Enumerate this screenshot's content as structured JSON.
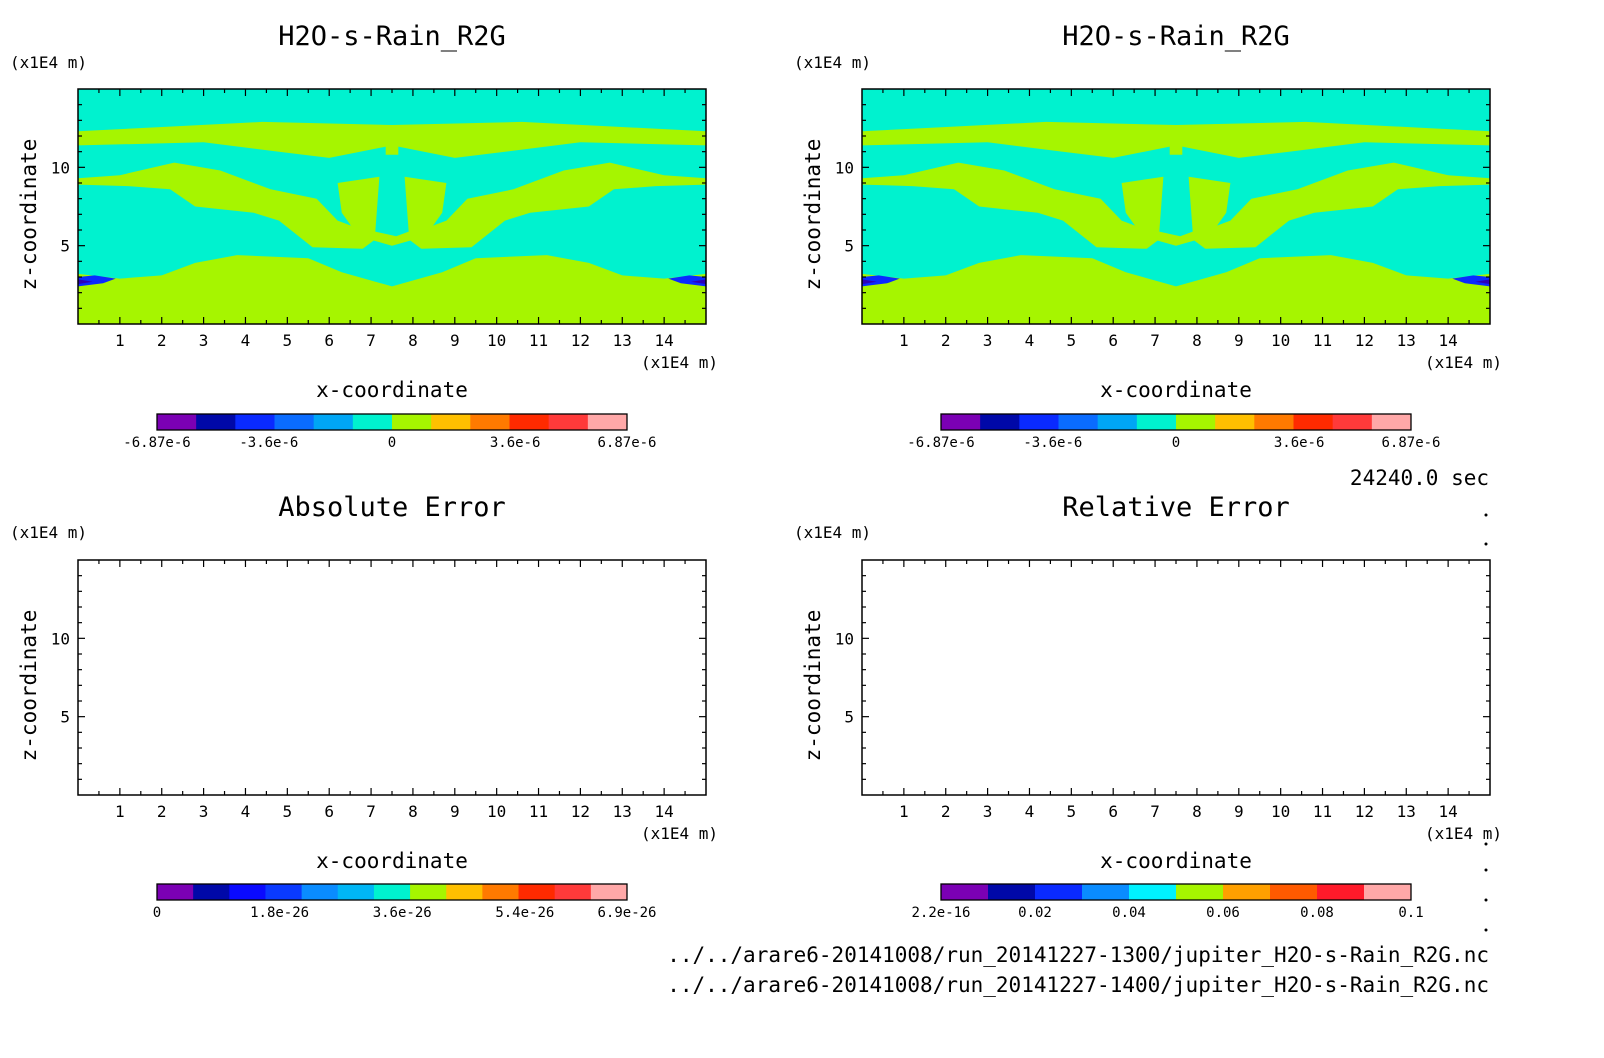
{
  "figure": {
    "time_label": "24240.0 sec",
    "files": [
      "../../arare6-20141008/run_20141227-1300/jupiter_H2O-s-Rain_R2G.nc",
      "../../arare6-20141008/run_20141227-1400/jupiter_H2O-s-Rain_R2G.nc"
    ]
  },
  "colors": {
    "field_background": "#00f2cf",
    "field_positive": "#a6f500",
    "field_negative": "#0a2aff",
    "field_negative_core": "#2b00b8"
  },
  "chart_data": [
    {
      "type": "heatmap",
      "title": "H2O-s-Rain_R2G",
      "xlabel": "x-coordinate",
      "ylabel": "z-coordinate",
      "x_unit": "(x1E4 m)",
      "y_unit": "(x1E4 m)",
      "xlim": [
        0,
        15
      ],
      "ylim": [
        0,
        15
      ],
      "x_ticks": [
        1,
        2,
        3,
        4,
        5,
        6,
        7,
        8,
        9,
        10,
        11,
        12,
        13,
        14
      ],
      "y_ticks": [
        5,
        10
      ],
      "colorbar": {
        "colors": [
          "#7b00b4",
          "#0008a8",
          "#0a2aff",
          "#0a6cff",
          "#00a6f5",
          "#00f2cf",
          "#a6f500",
          "#ffc000",
          "#ff7a00",
          "#ff2a00",
          "#ff3a3a",
          "#ffa8a8"
        ],
        "tick_labels": [
          "-6.87e-6",
          "-3.6e-6",
          "0",
          "3.6e-6",
          "6.87e-6"
        ],
        "tick_values": [
          -6.87e-06,
          -3.6e-06,
          0,
          3.6e-06,
          6.87e-06
        ],
        "range": [
          -6.87e-06,
          6.87e-06
        ]
      },
      "field": "filled"
    },
    {
      "type": "heatmap",
      "title": "H2O-s-Rain_R2G",
      "xlabel": "x-coordinate",
      "ylabel": "z-coordinate",
      "x_unit": "(x1E4 m)",
      "y_unit": "(x1E4 m)",
      "xlim": [
        0,
        15
      ],
      "ylim": [
        0,
        15
      ],
      "x_ticks": [
        1,
        2,
        3,
        4,
        5,
        6,
        7,
        8,
        9,
        10,
        11,
        12,
        13,
        14
      ],
      "y_ticks": [
        5,
        10
      ],
      "colorbar": {
        "colors": [
          "#7b00b4",
          "#0008a8",
          "#0a2aff",
          "#0a6cff",
          "#00a6f5",
          "#00f2cf",
          "#a6f500",
          "#ffc000",
          "#ff7a00",
          "#ff2a00",
          "#ff3a3a",
          "#ffa8a8"
        ],
        "tick_labels": [
          "-6.87e-6",
          "-3.6e-6",
          "0",
          "3.6e-6",
          "6.87e-6"
        ],
        "tick_values": [
          -6.87e-06,
          -3.6e-06,
          0,
          3.6e-06,
          6.87e-06
        ],
        "range": [
          -6.87e-06,
          6.87e-06
        ]
      },
      "field": "filled"
    },
    {
      "type": "heatmap",
      "title": "Absolute Error",
      "xlabel": "x-coordinate",
      "ylabel": "z-coordinate",
      "x_unit": "(x1E4 m)",
      "y_unit": "(x1E4 m)",
      "xlim": [
        0,
        15
      ],
      "ylim": [
        0,
        15
      ],
      "x_ticks": [
        1,
        2,
        3,
        4,
        5,
        6,
        7,
        8,
        9,
        10,
        11,
        12,
        13,
        14
      ],
      "y_ticks": [
        5,
        10
      ],
      "colorbar": {
        "colors": [
          "#7b00b4",
          "#0008a8",
          "#0a0aff",
          "#0a3aff",
          "#0a8cff",
          "#00b6f5",
          "#00f2cf",
          "#a6f500",
          "#ffc000",
          "#ff7a00",
          "#ff2a00",
          "#ff3a3a",
          "#ffa8a8"
        ],
        "tick_labels": [
          "0",
          "1.8e-26",
          "3.6e-26",
          "5.4e-26",
          "6.9e-26"
        ],
        "tick_values": [
          0,
          1.8e-26,
          3.6e-26,
          5.4e-26,
          6.9e-26
        ],
        "range": [
          0,
          6.9e-26
        ]
      },
      "field": "empty"
    },
    {
      "type": "heatmap",
      "title": "Relative Error",
      "xlabel": "x-coordinate",
      "ylabel": "z-coordinate",
      "x_unit": "(x1E4 m)",
      "y_unit": "(x1E4 m)",
      "xlim": [
        0,
        15
      ],
      "ylim": [
        0,
        15
      ],
      "x_ticks": [
        1,
        2,
        3,
        4,
        5,
        6,
        7,
        8,
        9,
        10,
        11,
        12,
        13,
        14
      ],
      "y_ticks": [
        5,
        10
      ],
      "colorbar": {
        "colors": [
          "#7b00b4",
          "#0008a8",
          "#0a2aff",
          "#0a8cff",
          "#00f2ff",
          "#a6f500",
          "#ffa000",
          "#ff5a00",
          "#ff1a2a",
          "#ffa8a8"
        ],
        "tick_labels": [
          "2.2e-16",
          "0.02",
          "0.04",
          "0.06",
          "0.08",
          "0.1"
        ],
        "tick_values": [
          2.2e-16,
          0.02,
          0.04,
          0.06,
          0.08,
          0.1
        ],
        "range": [
          0,
          0.1
        ]
      },
      "field": "empty"
    }
  ]
}
